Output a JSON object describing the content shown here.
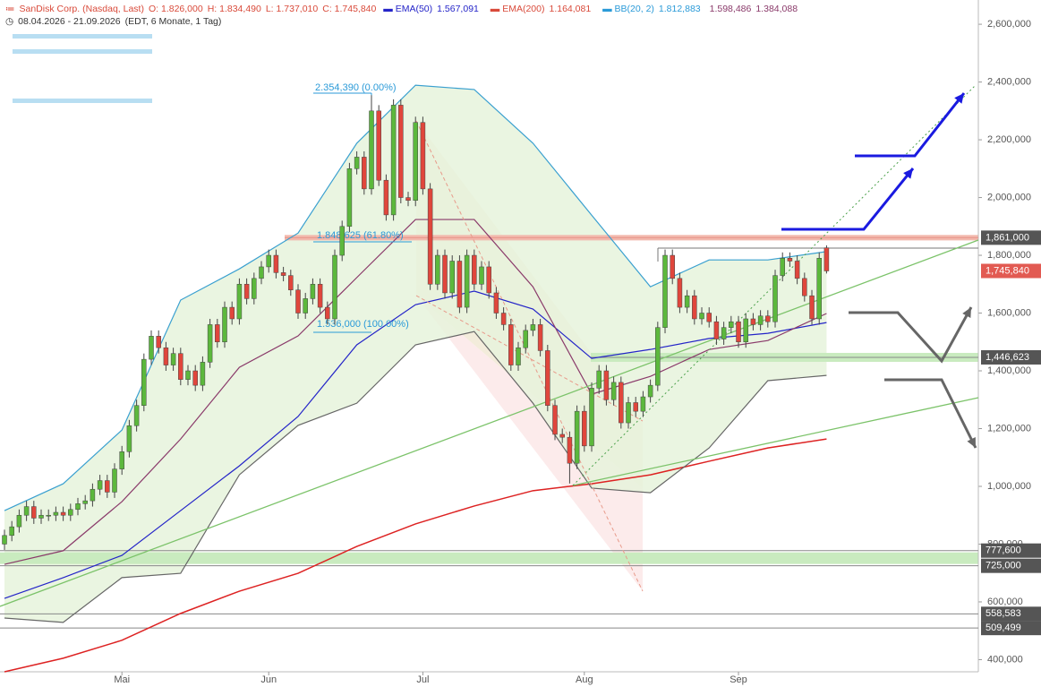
{
  "chart_data": {
    "type": "candlestick",
    "title": "SanDisk Corp. (Nasdaq, Last)",
    "ohlc_header": [
      "O: 1.826,000",
      "H: 1.834,490",
      "L: 1.737,010",
      "C: 1.745,840"
    ],
    "subtitle": [
      "08.04.2026 - 21.09.2026",
      "(EDT, 6 Monate, 1 Tag)"
    ],
    "up_color": "#5cb83c",
    "down_color": "#e0463c",
    "open": [
      800000,
      830000,
      860000,
      900000,
      930000,
      890000,
      900000,
      900000,
      910000,
      900000,
      920000,
      940000,
      950000,
      990000,
      1020000,
      980000,
      1060000,
      1120000,
      1210000,
      1280000,
      1440000,
      1520000,
      1480000,
      1420000,
      1460000,
      1370000,
      1400000,
      1350000,
      1430000,
      1560000,
      1500000,
      1620000,
      1580000,
      1700000,
      1650000,
      1720000,
      1760000,
      1800000,
      1740000,
      1730000,
      1680000,
      1600000,
      1650000,
      1700000,
      1620000,
      1580000,
      1800000,
      1900000,
      2100000,
      2140000,
      2030000,
      2300000,
      2060000,
      1940000,
      2320000,
      2000000,
      1990000,
      2260000,
      2030000,
      1700000,
      1800000,
      1670000,
      1780000,
      1620000,
      1800000,
      1700000,
      1760000,
      1670000,
      1600000,
      1560000,
      1420000,
      1480000,
      1540000,
      1560000,
      1470000,
      1280000,
      1180000,
      1170000,
      1080000,
      1260000,
      1140000,
      1340000,
      1400000,
      1300000,
      1360000,
      1220000,
      1290000,
      1260000,
      1310000,
      1350000,
      1550000,
      1800000,
      1720000,
      1620000,
      1660000,
      1580000,
      1600000,
      1570000,
      1510000,
      1550000,
      1570000,
      1500000,
      1580000,
      1560000,
      1590000,
      1570000,
      1730000,
      1790000,
      1780000,
      1720000,
      1660000,
      1580000,
      1826000
    ],
    "high": [
      850000,
      880000,
      920000,
      950000,
      950000,
      920000,
      920000,
      930000,
      930000,
      940000,
      960000,
      970000,
      1010000,
      1040000,
      1040000,
      1080000,
      1140000,
      1230000,
      1300000,
      1460000,
      1540000,
      1540000,
      1500000,
      1480000,
      1480000,
      1420000,
      1420000,
      1450000,
      1580000,
      1580000,
      1640000,
      1640000,
      1720000,
      1720000,
      1740000,
      1780000,
      1820000,
      1820000,
      1760000,
      1750000,
      1700000,
      1670000,
      1720000,
      1720000,
      1640000,
      1820000,
      1920000,
      2120000,
      2160000,
      2160000,
      2354390,
      2320000,
      2080000,
      2340000,
      2340000,
      2020000,
      2280000,
      2280000,
      2050000,
      1820000,
      1820000,
      1800000,
      1800000,
      1820000,
      1820000,
      1780000,
      1780000,
      1690000,
      1620000,
      1580000,
      1500000,
      1560000,
      1580000,
      1580000,
      1490000,
      1300000,
      1200000,
      1190000,
      1280000,
      1280000,
      1360000,
      1420000,
      1420000,
      1380000,
      1380000,
      1310000,
      1310000,
      1330000,
      1370000,
      1570000,
      1820000,
      1820000,
      1740000,
      1680000,
      1680000,
      1620000,
      1620000,
      1590000,
      1570000,
      1590000,
      1590000,
      1600000,
      1600000,
      1610000,
      1610000,
      1750000,
      1810000,
      1810000,
      1800000,
      1740000,
      1680000,
      1810000,
      1834490
    ],
    "low": [
      780000,
      810000,
      840000,
      880000,
      870000,
      870000,
      880000,
      880000,
      880000,
      880000,
      900000,
      920000,
      930000,
      970000,
      960000,
      960000,
      1040000,
      1100000,
      1190000,
      1260000,
      1420000,
      1460000,
      1400000,
      1400000,
      1350000,
      1350000,
      1330000,
      1330000,
      1410000,
      1480000,
      1480000,
      1560000,
      1560000,
      1630000,
      1630000,
      1700000,
      1740000,
      1720000,
      1710000,
      1660000,
      1580000,
      1580000,
      1630000,
      1600000,
      1560000,
      1560000,
      1780000,
      1880000,
      2080000,
      2010000,
      2010000,
      2040000,
      1920000,
      1920000,
      1980000,
      1970000,
      1970000,
      2010000,
      1680000,
      1680000,
      1650000,
      1650000,
      1600000,
      1600000,
      1680000,
      1680000,
      1650000,
      1580000,
      1540000,
      1400000,
      1400000,
      1460000,
      1520000,
      1450000,
      1260000,
      1160000,
      1150000,
      1010000,
      1060000,
      1120000,
      1120000,
      1320000,
      1280000,
      1280000,
      1200000,
      1200000,
      1240000,
      1240000,
      1290000,
      1330000,
      1530000,
      1700000,
      1600000,
      1600000,
      1560000,
      1560000,
      1550000,
      1490000,
      1490000,
      1530000,
      1480000,
      1480000,
      1540000,
      1540000,
      1550000,
      1550000,
      1710000,
      1760000,
      1700000,
      1640000,
      1560000,
      1560000,
      1737010
    ],
    "close": [
      830000,
      860000,
      900000,
      930000,
      890000,
      900000,
      900000,
      910000,
      900000,
      920000,
      940000,
      950000,
      990000,
      1020000,
      980000,
      1060000,
      1120000,
      1210000,
      1280000,
      1440000,
      1520000,
      1480000,
      1420000,
      1460000,
      1370000,
      1400000,
      1350000,
      1430000,
      1560000,
      1500000,
      1620000,
      1580000,
      1700000,
      1650000,
      1720000,
      1760000,
      1800000,
      1740000,
      1730000,
      1680000,
      1600000,
      1650000,
      1700000,
      1620000,
      1580000,
      1800000,
      1900000,
      2100000,
      2140000,
      2030000,
      2300000,
      2060000,
      1940000,
      2320000,
      2000000,
      1990000,
      2260000,
      2030000,
      1700000,
      1800000,
      1670000,
      1780000,
      1620000,
      1800000,
      1700000,
      1760000,
      1670000,
      1600000,
      1560000,
      1420000,
      1480000,
      1540000,
      1560000,
      1470000,
      1280000,
      1180000,
      1170000,
      1080000,
      1260000,
      1140000,
      1340000,
      1400000,
      1300000,
      1360000,
      1220000,
      1290000,
      1260000,
      1310000,
      1350000,
      1550000,
      1800000,
      1720000,
      1620000,
      1660000,
      1580000,
      1600000,
      1570000,
      1510000,
      1550000,
      1570000,
      1500000,
      1580000,
      1560000,
      1590000,
      1570000,
      1730000,
      1790000,
      1780000,
      1720000,
      1660000,
      1580000,
      1790000,
      1745840
    ],
    "overlays": [
      {
        "name": "EMA(50)",
        "value_label": "1.567,091",
        "color": "#2424c8",
        "x": [
          0,
          8,
          16,
          24,
          32,
          40,
          48,
          56,
          64,
          72,
          80,
          88,
          96,
          104,
          112
        ],
        "values": [
          612000,
          684000,
          761000,
          916000,
          1071000,
          1242000,
          1490000,
          1629000,
          1676000,
          1614000,
          1443000,
          1474000,
          1512000,
          1530000,
          1567091
        ]
      },
      {
        "name": "EMA(200)",
        "value_label": "1.164,081",
        "color": "#dd2222",
        "x": [
          0,
          8,
          16,
          24,
          32,
          40,
          48,
          56,
          64,
          72,
          80,
          88,
          96,
          104,
          112
        ],
        "values": [
          358000,
          405000,
          467000,
          560000,
          637000,
          699000,
          792000,
          870000,
          932000,
          985000,
          1009000,
          1040000,
          1087000,
          1133000,
          1164081
        ]
      },
      {
        "name": "BB(20, 2)",
        "value_label": "1.812,883",
        "color": "#3aa0d0",
        "x": [
          0,
          8,
          16,
          24,
          32,
          40,
          48,
          56,
          64,
          72,
          80,
          88,
          96,
          104,
          112
        ],
        "values": [
          916000,
          1009000,
          1195000,
          1645000,
          1753000,
          1877000,
          2188000,
          2389000,
          2374000,
          2188000,
          1939000,
          1691000,
          1784000,
          1784000,
          1812883
        ]
      },
      {
        "value_label": "1.598,486",
        "color": "#8a3a6a",
        "x": [
          0,
          8,
          16,
          24,
          32,
          40,
          48,
          56,
          64,
          72,
          80,
          88,
          96,
          104,
          112
        ],
        "values": [
          730000,
          777000,
          947000,
          1164000,
          1412000,
          1521000,
          1723000,
          1924000,
          1924000,
          1691000,
          1319000,
          1381000,
          1474000,
          1505000,
          1598486
        ]
      },
      {
        "value_label": "1.384,088",
        "color": "#666666",
        "x": [
          0,
          8,
          16,
          24,
          32,
          40,
          48,
          56,
          64,
          72,
          80,
          88,
          96,
          104,
          112
        ],
        "values": [
          544000,
          529000,
          684000,
          699000,
          1040000,
          1211000,
          1288000,
          1490000,
          1536000,
          1288000,
          994000,
          978000,
          1133000,
          1366000,
          1384088
        ]
      }
    ],
    "band_fill": "#e6f3dc",
    "ylim": [
      358000,
      2684000
    ],
    "xlim": [
      -0.61,
      132.68
    ],
    "yticks": [
      {
        "value": 400000,
        "label": "400,000"
      },
      {
        "value": 600000,
        "label": "600,000"
      },
      {
        "value": 800000,
        "label": "800,000"
      },
      {
        "value": 1000000,
        "label": "1,000,000"
      },
      {
        "value": 1200000,
        "label": "1,200,000"
      },
      {
        "value": 1400000,
        "label": "1,400,000"
      },
      {
        "value": 1600000,
        "label": "1,600,000"
      },
      {
        "value": 1800000,
        "label": "1,800,000"
      },
      {
        "value": 2000000,
        "label": "2,000,000"
      },
      {
        "value": 2200000,
        "label": "2,200,000"
      },
      {
        "value": 2400000,
        "label": "2,400,000"
      },
      {
        "value": 2600000,
        "label": "2,600,000"
      }
    ],
    "xticks": [
      {
        "value": 16,
        "label": "Mai"
      },
      {
        "value": 36,
        "label": "Jun"
      },
      {
        "value": 57,
        "label": "Jul"
      },
      {
        "value": 79,
        "label": "Aug"
      },
      {
        "value": 100,
        "label": "Sep"
      }
    ],
    "levels": [
      {
        "value": 1861000,
        "label": "1,861,000",
        "color": "#555555"
      },
      {
        "value": 1745840,
        "label": "1,745,840",
        "color": "#e25a52"
      },
      {
        "value": 1446623,
        "label": "1,446,623",
        "color": "#555555"
      },
      {
        "value": 777600,
        "label": "777,600",
        "color": "#555555"
      },
      {
        "value": 725000,
        "label": "725,000",
        "color": "#555555"
      },
      {
        "value": 558583,
        "label": "558,583",
        "color": "#555555"
      },
      {
        "value": 509499,
        "label": "509,499",
        "color": "#555555"
      }
    ],
    "annotations": [
      "2.354,390 (0.00%)",
      "1.848,625 (61.80%)",
      "1.536,000 (100.00%)"
    ]
  }
}
